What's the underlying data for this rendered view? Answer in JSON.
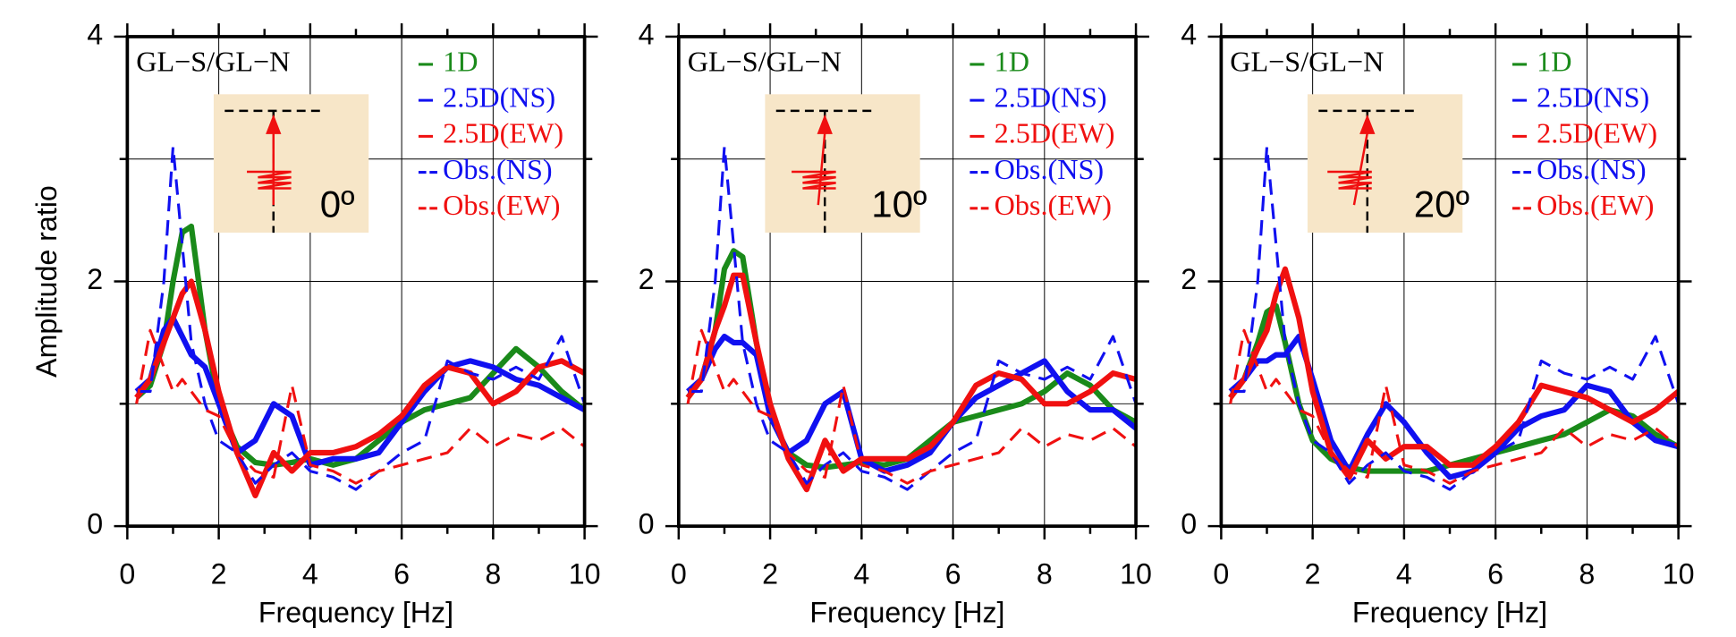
{
  "chart_data": [
    {
      "type": "line",
      "title": "GL−S/GL−N",
      "annotation": "0º",
      "ylabel": "Amplitude ratio",
      "xlabel": "Frequency [Hz]",
      "xlim": [
        0,
        10
      ],
      "xticks": [
        0,
        2,
        4,
        6,
        8,
        10
      ],
      "xminorticks": [
        1,
        3,
        5,
        7,
        9
      ],
      "ylim": [
        0,
        4
      ],
      "yticks": [
        0,
        2,
        4
      ],
      "yminorticks": [
        1,
        3
      ],
      "grid": true,
      "x": [
        0.2,
        0.5,
        0.8,
        1.0,
        1.2,
        1.4,
        1.7,
        2.0,
        2.4,
        2.8,
        3.2,
        3.6,
        4.0,
        4.5,
        5.0,
        5.5,
        6.0,
        6.5,
        7.0,
        7.5,
        8.0,
        8.5,
        9.0,
        9.5,
        10.0
      ],
      "series": [
        {
          "name": "1D",
          "color": "#1a8a1a",
          "dash": false,
          "values": [
            1.05,
            1.15,
            1.5,
            2.0,
            2.4,
            2.45,
            1.6,
            1.0,
            0.65,
            0.52,
            0.5,
            0.52,
            0.55,
            0.5,
            0.55,
            0.7,
            0.85,
            0.95,
            1.0,
            1.05,
            1.25,
            1.45,
            1.3,
            1.1,
            0.95
          ]
        },
        {
          "name": "2.5D(NS)",
          "color": "#1010f0",
          "dash": false,
          "values": [
            1.1,
            1.2,
            1.6,
            1.7,
            1.55,
            1.4,
            1.3,
            1.0,
            0.6,
            0.7,
            1.0,
            0.9,
            0.5,
            0.55,
            0.55,
            0.6,
            0.85,
            1.1,
            1.3,
            1.35,
            1.3,
            1.2,
            1.15,
            1.05,
            0.95
          ]
        },
        {
          "name": "2.5D(EW)",
          "color": "#f01010",
          "dash": false,
          "values": [
            1.05,
            1.2,
            1.5,
            1.7,
            1.9,
            2.0,
            1.6,
            1.1,
            0.6,
            0.25,
            0.6,
            0.45,
            0.6,
            0.6,
            0.65,
            0.75,
            0.9,
            1.15,
            1.3,
            1.25,
            1.0,
            1.1,
            1.3,
            1.35,
            1.25
          ]
        },
        {
          "name": "Obs.(NS)",
          "color": "#1010f0",
          "dash": true,
          "values": [
            1.1,
            1.1,
            2.0,
            3.1,
            2.3,
            1.5,
            1.0,
            0.7,
            0.6,
            0.35,
            0.5,
            0.6,
            0.45,
            0.4,
            0.3,
            0.45,
            0.6,
            0.7,
            1.35,
            1.25,
            1.2,
            1.3,
            1.2,
            1.55,
            1.0
          ]
        },
        {
          "name": "Obs.(EW)",
          "color": "#f01010",
          "dash": true,
          "values": [
            1.0,
            1.6,
            1.3,
            1.1,
            1.2,
            1.1,
            0.95,
            0.9,
            0.6,
            0.45,
            0.4,
            1.15,
            0.5,
            0.45,
            0.35,
            0.45,
            0.5,
            0.55,
            0.6,
            0.8,
            0.65,
            0.75,
            0.7,
            0.8,
            0.65
          ]
        }
      ]
    },
    {
      "type": "line",
      "title": "GL−S/GL−N",
      "annotation": "10º",
      "xlabel": "Frequency [Hz]",
      "xlim": [
        0,
        10
      ],
      "xticks": [
        0,
        2,
        4,
        6,
        8,
        10
      ],
      "xminorticks": [
        1,
        3,
        5,
        7,
        9
      ],
      "ylim": [
        0,
        4
      ],
      "yticks": [
        0,
        2,
        4
      ],
      "yminorticks": [
        1,
        3
      ],
      "grid": true,
      "x": [
        0.2,
        0.5,
        0.8,
        1.0,
        1.2,
        1.4,
        1.7,
        2.0,
        2.4,
        2.8,
        3.2,
        3.6,
        4.0,
        4.5,
        5.0,
        5.5,
        6.0,
        6.5,
        7.0,
        7.5,
        8.0,
        8.5,
        9.0,
        9.5,
        10.0
      ],
      "series": [
        {
          "name": "1D",
          "color": "#1a8a1a",
          "dash": false,
          "values": [
            1.05,
            1.2,
            1.6,
            2.1,
            2.25,
            2.2,
            1.5,
            0.9,
            0.6,
            0.5,
            0.48,
            0.5,
            0.52,
            0.5,
            0.55,
            0.7,
            0.85,
            0.9,
            0.95,
            1.0,
            1.1,
            1.25,
            1.15,
            0.95,
            0.85
          ]
        },
        {
          "name": "2.5D(NS)",
          "color": "#1010f0",
          "dash": false,
          "values": [
            1.1,
            1.2,
            1.45,
            1.55,
            1.5,
            1.5,
            1.4,
            0.9,
            0.6,
            0.7,
            1.0,
            1.1,
            0.55,
            0.45,
            0.5,
            0.6,
            0.85,
            1.05,
            1.15,
            1.25,
            1.35,
            1.1,
            0.95,
            0.95,
            0.8
          ]
        },
        {
          "name": "2.5D(EW)",
          "color": "#f01010",
          "dash": false,
          "values": [
            1.05,
            1.2,
            1.6,
            1.8,
            2.05,
            2.05,
            1.5,
            1.0,
            0.55,
            0.3,
            0.7,
            0.45,
            0.55,
            0.55,
            0.55,
            0.65,
            0.85,
            1.15,
            1.25,
            1.2,
            1.0,
            1.0,
            1.1,
            1.25,
            1.2
          ]
        },
        {
          "name": "Obs.(NS)",
          "color": "#1010f0",
          "dash": true,
          "values": [
            1.1,
            1.1,
            2.0,
            3.1,
            2.3,
            1.5,
            1.0,
            0.7,
            0.6,
            0.35,
            0.5,
            0.6,
            0.45,
            0.4,
            0.3,
            0.45,
            0.6,
            0.7,
            1.35,
            1.25,
            1.2,
            1.3,
            1.2,
            1.55,
            1.0
          ]
        },
        {
          "name": "Obs.(EW)",
          "color": "#f01010",
          "dash": true,
          "values": [
            1.0,
            1.6,
            1.3,
            1.1,
            1.2,
            1.1,
            0.95,
            0.9,
            0.6,
            0.45,
            0.4,
            1.15,
            0.5,
            0.45,
            0.35,
            0.45,
            0.5,
            0.55,
            0.6,
            0.8,
            0.65,
            0.75,
            0.7,
            0.8,
            0.65
          ]
        }
      ]
    },
    {
      "type": "line",
      "title": "GL−S/GL−N",
      "annotation": "20º",
      "xlabel": "Frequency [Hz]",
      "xlim": [
        0,
        10
      ],
      "xticks": [
        0,
        2,
        4,
        6,
        8,
        10
      ],
      "xminorticks": [
        1,
        3,
        5,
        7,
        9
      ],
      "ylim": [
        0,
        4
      ],
      "yticks": [
        0,
        2,
        4
      ],
      "yminorticks": [
        1,
        3
      ],
      "grid": true,
      "x": [
        0.2,
        0.5,
        0.8,
        1.0,
        1.2,
        1.4,
        1.7,
        2.0,
        2.4,
        2.8,
        3.2,
        3.6,
        4.0,
        4.5,
        5.0,
        5.5,
        6.0,
        6.5,
        7.0,
        7.5,
        8.0,
        8.5,
        9.0,
        9.5,
        10.0
      ],
      "series": [
        {
          "name": "1D",
          "color": "#1a8a1a",
          "dash": false,
          "values": [
            1.05,
            1.2,
            1.5,
            1.75,
            1.8,
            1.5,
            1.0,
            0.7,
            0.55,
            0.48,
            0.45,
            0.45,
            0.45,
            0.45,
            0.5,
            0.55,
            0.6,
            0.65,
            0.7,
            0.75,
            0.85,
            0.95,
            0.9,
            0.75,
            0.65
          ]
        },
        {
          "name": "2.5D(NS)",
          "color": "#1010f0",
          "dash": false,
          "values": [
            1.1,
            1.2,
            1.35,
            1.35,
            1.4,
            1.4,
            1.55,
            1.2,
            0.7,
            0.45,
            0.75,
            1.0,
            0.85,
            0.6,
            0.4,
            0.45,
            0.6,
            0.8,
            0.9,
            0.95,
            1.15,
            1.1,
            0.85,
            0.7,
            0.65
          ]
        },
        {
          "name": "2.5D(EW)",
          "color": "#f01010",
          "dash": false,
          "values": [
            1.05,
            1.2,
            1.45,
            1.6,
            1.9,
            2.1,
            1.7,
            1.1,
            0.6,
            0.4,
            0.7,
            0.55,
            0.65,
            0.65,
            0.5,
            0.5,
            0.65,
            0.85,
            1.15,
            1.1,
            1.05,
            0.95,
            0.85,
            0.95,
            1.1
          ]
        },
        {
          "name": "Obs.(NS)",
          "color": "#1010f0",
          "dash": true,
          "values": [
            1.1,
            1.1,
            2.0,
            3.1,
            2.3,
            1.5,
            1.0,
            0.7,
            0.6,
            0.35,
            0.5,
            0.6,
            0.45,
            0.4,
            0.3,
            0.45,
            0.6,
            0.7,
            1.35,
            1.25,
            1.2,
            1.3,
            1.2,
            1.55,
            1.0
          ]
        },
        {
          "name": "Obs.(EW)",
          "color": "#f01010",
          "dash": true,
          "values": [
            1.0,
            1.6,
            1.3,
            1.1,
            1.2,
            1.1,
            0.95,
            0.9,
            0.6,
            0.45,
            0.4,
            1.15,
            0.5,
            0.45,
            0.35,
            0.45,
            0.5,
            0.55,
            0.6,
            0.8,
            0.65,
            0.75,
            0.7,
            0.8,
            0.65
          ]
        }
      ]
    }
  ]
}
